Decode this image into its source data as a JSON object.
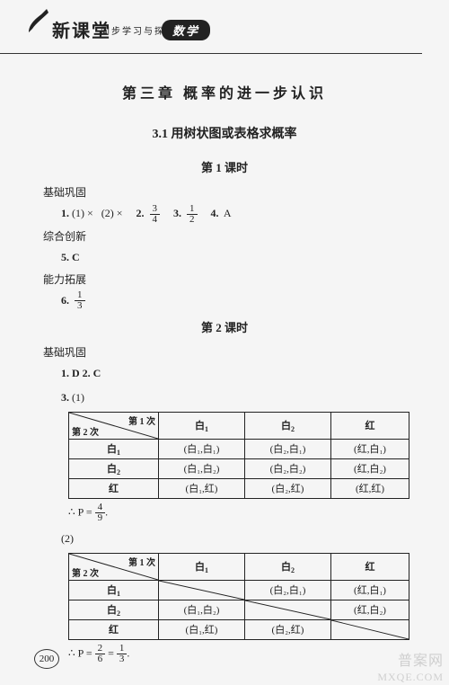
{
  "header": {
    "logo_main": "新课堂",
    "logo_sub": "同步学习与探究",
    "subject": "数学"
  },
  "chapter_title": "第三章  概率的进一步认识",
  "section_title": "3.1  用树状图或表格求概率",
  "lesson1": {
    "heading": "第 1 课时",
    "jichu_label": "基础巩固",
    "line1_parts": {
      "q1_num": "1.",
      "q1a": "(1) ×",
      "q1b": "(2) ×",
      "q2_num": "2.",
      "q2_frac_n": "3",
      "q2_frac_d": "4",
      "q3_num": "3.",
      "q3_frac_n": "1",
      "q3_frac_d": "2",
      "q4_num": "4.",
      "q4_ans": "A"
    },
    "zonghe_label": "综合创新",
    "q5": "5. C",
    "nengli_label": "能力拓展",
    "q6_num": "6.",
    "q6_frac_n": "1",
    "q6_frac_d": "3"
  },
  "lesson2": {
    "heading": "第 2 课时",
    "jichu_label": "基础巩固",
    "line1": "1.  D    2.  C",
    "q3_num": "3.",
    "part1_label": "(1)",
    "part2_label": "(2)",
    "diag_col_lab": "第 1 次",
    "diag_row_lab": "第 2 次",
    "cols": [
      "白",
      "白",
      "红"
    ],
    "col_subs": [
      "1",
      "2",
      ""
    ],
    "row_heads": [
      "白",
      "白",
      "红"
    ],
    "row_subs": [
      "1",
      "2",
      ""
    ],
    "table1": [
      [
        "(白₁,白₁)",
        "(白₂,白₁)",
        "(红,白₁)"
      ],
      [
        "(白₁,白₂)",
        "(白₂,白₂)",
        "(红,白₂)"
      ],
      [
        "(白₁,红)",
        "(白₂,红)",
        "(红,红)"
      ]
    ],
    "table2": [
      [
        "",
        "(白₂,白₁)",
        "(红,白₁)"
      ],
      [
        "(白₁,白₂)",
        "",
        "(红,白₂)"
      ],
      [
        "(白₁,红)",
        "(白₂,红)",
        ""
      ]
    ],
    "eqn1_prefix": "∴ P = ",
    "eqn1_n": "4",
    "eqn1_d": "9",
    "eqn1_suffix": ".",
    "eqn2_prefix": "∴ P = ",
    "eqn2_n1": "2",
    "eqn2_d1": "6",
    "eqn2_eq": " = ",
    "eqn2_n2": "1",
    "eqn2_d2": "3",
    "eqn2_suffix": "."
  },
  "page_number": "200",
  "watermark": {
    "zh": "普案网",
    "url": "MXQE.COM"
  },
  "style": {
    "bg": "#f5f5f5",
    "ink": "#222222",
    "table_border": "#222222"
  }
}
